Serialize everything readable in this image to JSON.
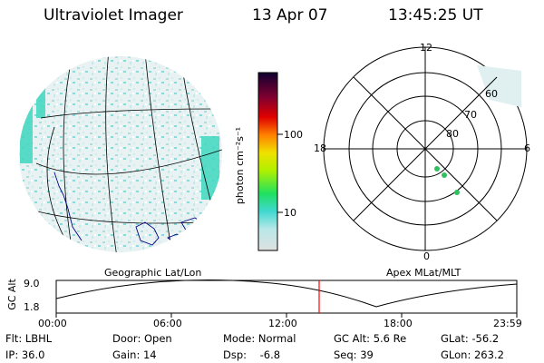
{
  "header": {
    "instrument": "Ultraviolet Imager",
    "date": "13 Apr 07",
    "time": "13:45:25 UT"
  },
  "colorbar": {
    "unit_label": "photon cm⁻²s⁻¹",
    "ticks": [
      "100",
      "10"
    ]
  },
  "polar_plot": {
    "mlt_labels": [
      "12",
      "18",
      "6",
      "0"
    ],
    "lat_labels": [
      "60",
      "70",
      "80"
    ]
  },
  "orbit_panel": {
    "left_label": "Geographic Lat/Lon",
    "right_label": "Apex MLat/MLT",
    "y_axis_label": "GC Alt",
    "y_ticks": [
      "9.0",
      "1.8"
    ],
    "x_ticks": [
      "00:00",
      "06:00",
      "12:00",
      "18:00",
      "23:59"
    ]
  },
  "status": {
    "flt": "Flt: LBHL",
    "ip": "IP: 36.0",
    "door": "Door: Open",
    "gain": "Gain: 14",
    "mode": "Mode: Normal",
    "dsp": "Dsp:    -6.8",
    "gc_alt": "GC Alt: 5.6 Re",
    "seq": "Seq: 39",
    "glat": "GLat: -56.2",
    "glon": "GLon: 263.2"
  }
}
